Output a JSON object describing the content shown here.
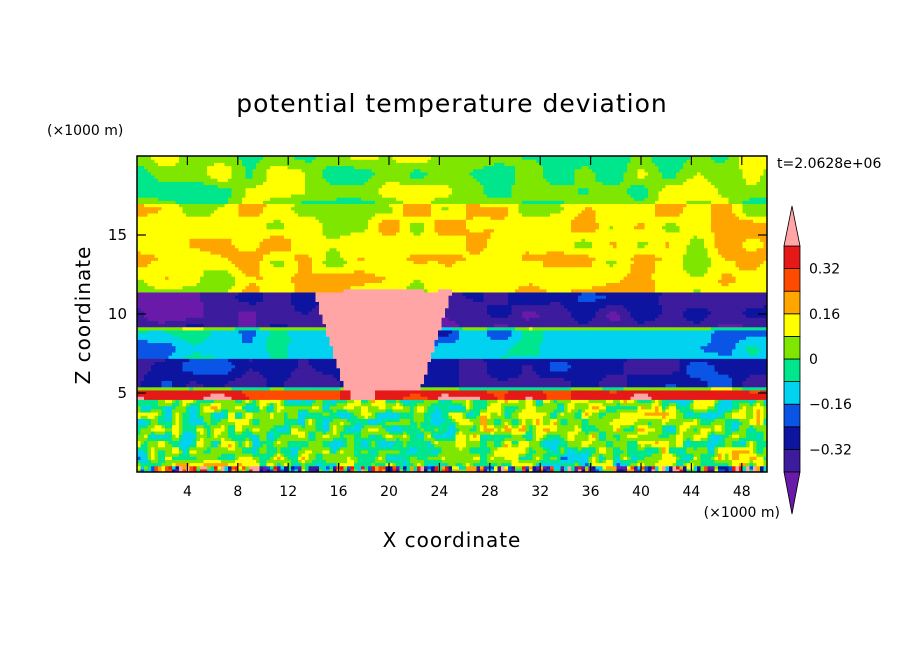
{
  "chart_data": {
    "type": "heatmap",
    "title": "potential temperature deviation",
    "xlabel": "X coordinate",
    "ylabel": "Z coordinate",
    "x_unit_label": "(×1000 m)",
    "y_unit_label": "(×1000 m)",
    "time_label": "t=2.0628e+06",
    "xlim": [
      0,
      50
    ],
    "ylim": [
      0,
      20
    ],
    "x_ticks": [
      "4",
      "8",
      "12",
      "16",
      "20",
      "24",
      "28",
      "32",
      "36",
      "40",
      "44",
      "48"
    ],
    "x_tick_values": [
      4,
      8,
      12,
      16,
      20,
      24,
      28,
      32,
      36,
      40,
      44,
      48
    ],
    "y_ticks": [
      "5",
      "10",
      "15"
    ],
    "y_tick_values": [
      5,
      10,
      15
    ],
    "colorbar": {
      "levels": [
        -0.4,
        -0.32,
        -0.24,
        -0.16,
        -0.08,
        0,
        0.08,
        0.16,
        0.24,
        0.32,
        0.4
      ],
      "tick_labels": [
        "0.32",
        "0.16",
        "0",
        "−0.16",
        "−0.32"
      ],
      "tick_values": [
        0.32,
        0.16,
        0,
        -0.16,
        -0.32
      ],
      "colors": [
        "#6a1aa8",
        "#3c1b9c",
        "#0c14a0",
        "#0a55e6",
        "#00d2f0",
        "#00e68c",
        "#7fe600",
        "#ffff00",
        "#ffa500",
        "#ff4b00",
        "#e61919",
        "#ffa5a5"
      ]
    },
    "features": [
      {
        "type": "band",
        "z": [
          0.1,
          4.5
        ],
        "value": 0.02
      },
      {
        "type": "band",
        "z": [
          4.7,
          5.2
        ],
        "value": 0.35
      },
      {
        "type": "band",
        "z": [
          5.4,
          7.2
        ],
        "value": -0.3
      },
      {
        "type": "band",
        "z": [
          7.2,
          9.0
        ],
        "value": -0.12
      },
      {
        "type": "band",
        "z": [
          9.2,
          11.4
        ],
        "value": -0.36
      },
      {
        "type": "band",
        "z": [
          11.4,
          13.5
        ],
        "value": 0.1
      },
      {
        "type": "band",
        "z": [
          13.5,
          17.0
        ],
        "value": 0.12
      },
      {
        "type": "band",
        "z": [
          17.0,
          20.0
        ],
        "value": 0.03
      },
      {
        "type": "plume",
        "x": [
          14,
          25
        ],
        "z": [
          5.3,
          11.5
        ],
        "value": 0.45
      }
    ]
  }
}
